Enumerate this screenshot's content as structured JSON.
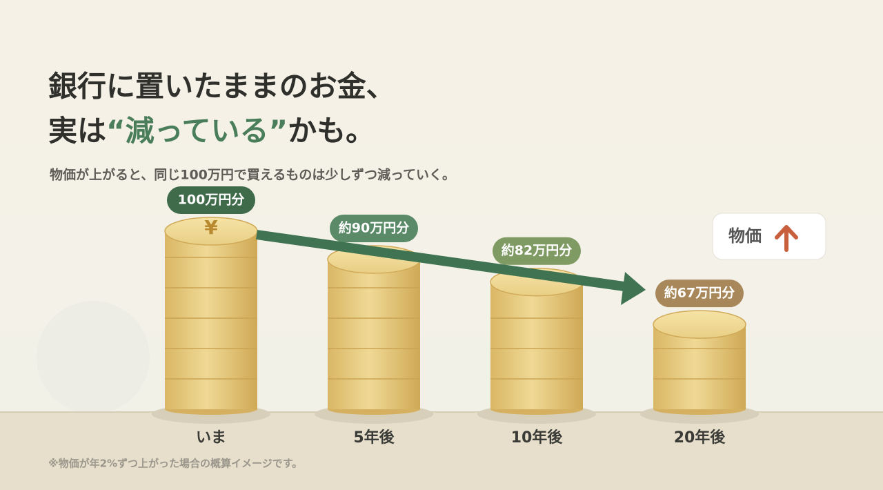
{
  "chart_data": {
    "type": "bar",
    "title": [
      "銀行に置いたままのお金、",
      "実は",
      "“減っている”",
      "かも。"
    ],
    "subtitle": "物価が上がると、同じ100万円で買えるものは少しずつ減っていく。",
    "categories": [
      "いま",
      "5年後",
      "10年後",
      "20年後"
    ],
    "values": [
      100,
      90,
      82,
      67
    ],
    "value_labels": [
      "100万円分",
      "約90万円分",
      "約82万円分",
      "約67万円分"
    ],
    "label_colors": [
      "#3f6b4b",
      "#5b8a68",
      "#7f9a62",
      "#a8885a"
    ],
    "top_symbol": "¥",
    "badge": "物価",
    "note": "※物価が年2%ずつ上がった場合の概算イメージです。",
    "ylim": [
      36,
      100
    ]
  }
}
